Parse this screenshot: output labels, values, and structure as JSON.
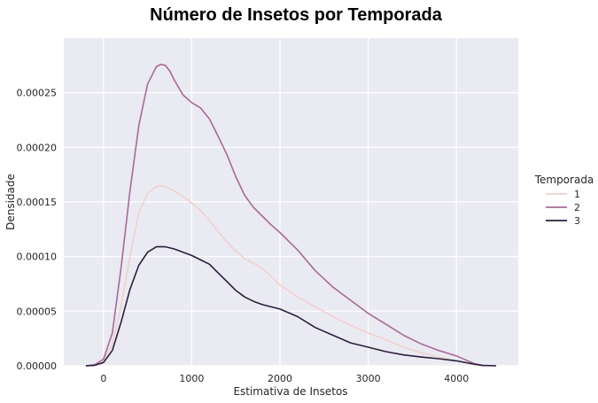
{
  "chart_data": {
    "type": "line",
    "title": "Número de Insetos por Temporada",
    "xlabel": "Estimativa de Insetos",
    "ylabel": "Densidade",
    "xlim": [
      -450,
      4700
    ],
    "ylim": [
      0,
      0.0003
    ],
    "grid": true,
    "legend_position": "right",
    "legend_title": "Temporada",
    "xticks": [
      {
        "value": 0,
        "label": "0"
      },
      {
        "value": 1000,
        "label": "1000"
      },
      {
        "value": 2000,
        "label": "2000"
      },
      {
        "value": 3000,
        "label": "3000"
      },
      {
        "value": 4000,
        "label": "4000"
      }
    ],
    "yticks": [
      {
        "value": 0,
        "label": "0.00000"
      },
      {
        "value": 5e-05,
        "label": "0.00005"
      },
      {
        "value": 0.0001,
        "label": "0.00010"
      },
      {
        "value": 0.00015,
        "label": "0.00015"
      },
      {
        "value": 0.0002,
        "label": "0.00020"
      },
      {
        "value": 0.00025,
        "label": "0.00025"
      }
    ],
    "series": [
      {
        "name": "1",
        "color": "#efd1ce",
        "x": [
          -200,
          -100,
          0,
          100,
          200,
          300,
          400,
          500,
          600,
          650,
          700,
          800,
          900,
          1000,
          1100,
          1200,
          1300,
          1400,
          1500,
          1600,
          1700,
          1800,
          1900,
          2000,
          2200,
          2400,
          2600,
          2800,
          3000,
          3200,
          3400,
          3600,
          3800,
          4000,
          4150,
          4250,
          4300
        ],
        "y": [
          0.0,
          5e-07,
          4e-06,
          2e-05,
          5.5e-05,
          0.0001,
          0.00014,
          0.000158,
          0.000164,
          0.000165,
          0.000164,
          0.00016,
          0.000155,
          0.000149,
          0.000142,
          0.000133,
          0.000123,
          0.000113,
          0.000105,
          9.8e-05,
          9.4e-05,
          8.9e-05,
          8.2e-05,
          7.4e-05,
          6.3e-05,
          5.4e-05,
          4.5e-05,
          3.7e-05,
          3e-05,
          2.4e-05,
          1.7e-05,
          1.2e-05,
          8e-06,
          4.5e-06,
          1.5e-06,
          3e-07,
          0.0
        ]
      },
      {
        "name": "2",
        "color": "#a76b97",
        "x": [
          -200,
          -100,
          0,
          100,
          200,
          300,
          400,
          500,
          600,
          650,
          700,
          750,
          800,
          900,
          1000,
          1100,
          1200,
          1300,
          1400,
          1500,
          1600,
          1700,
          1800,
          1900,
          2000,
          2200,
          2400,
          2600,
          2800,
          3000,
          3200,
          3400,
          3600,
          3800,
          4000,
          4100,
          4200,
          4300
        ],
        "y": [
          0.0,
          1e-06,
          6e-06,
          3e-05,
          9e-05,
          0.00016,
          0.00022,
          0.000258,
          0.000274,
          0.000276,
          0.000275,
          0.00027,
          0.000262,
          0.000248,
          0.000241,
          0.000236,
          0.000226,
          0.00021,
          0.000193,
          0.000173,
          0.000156,
          0.000145,
          0.000137,
          0.000129,
          0.000122,
          0.000106,
          8.7e-05,
          7.2e-05,
          6e-05,
          4.8e-05,
          3.8e-05,
          2.8e-05,
          2e-05,
          1.4e-05,
          9e-06,
          5.5e-06,
          2e-06,
          0.0
        ]
      },
      {
        "name": "3",
        "color": "#2c1e3d",
        "x": [
          -200,
          -100,
          0,
          100,
          200,
          300,
          400,
          500,
          600,
          700,
          800,
          900,
          1000,
          1100,
          1200,
          1300,
          1400,
          1500,
          1600,
          1700,
          1800,
          1900,
          2000,
          2200,
          2400,
          2600,
          2800,
          3000,
          3200,
          3400,
          3600,
          3800,
          4000,
          4200,
          4300,
          4450
        ],
        "y": [
          0.0,
          5e-07,
          3e-06,
          1.4e-05,
          4e-05,
          7e-05,
          9.2e-05,
          0.000104,
          0.000109,
          0.000109,
          0.000107,
          0.000104,
          0.000101,
          9.7e-05,
          9.3e-05,
          8.5e-05,
          7.7e-05,
          6.9e-05,
          6.3e-05,
          5.9e-05,
          5.6e-05,
          5.4e-05,
          5.2e-05,
          4.5e-05,
          3.5e-05,
          2.8e-05,
          2.1e-05,
          1.7e-05,
          1.3e-05,
          1e-05,
          8e-06,
          6.5e-06,
          4.5e-06,
          1.5e-06,
          3e-07,
          0.0
        ]
      }
    ]
  }
}
